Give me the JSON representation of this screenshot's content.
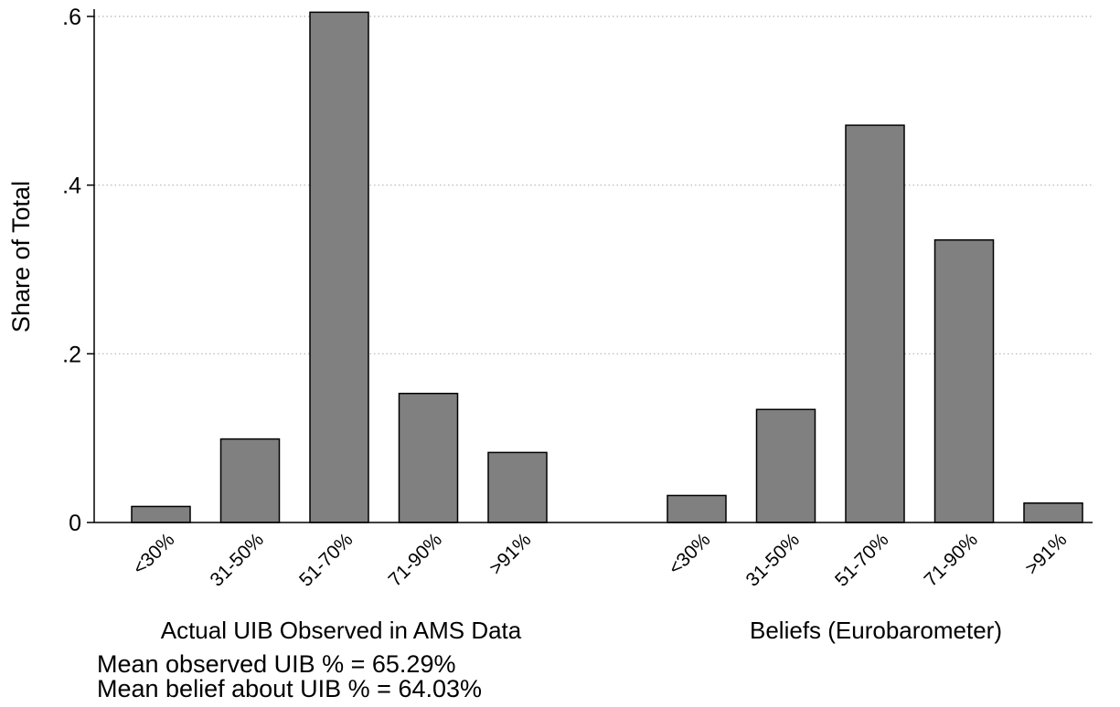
{
  "chart_data": {
    "type": "bar",
    "ylabel": "Share of Total",
    "ylim": [
      0,
      0.6
    ],
    "yticks": [
      0,
      0.2,
      0.4,
      0.6
    ],
    "ytick_labels": [
      "0",
      ".2",
      ".4",
      ".6"
    ],
    "grid": true,
    "bar_color": "#808080",
    "groups": [
      {
        "name": "Actual UIB Observed in AMS Data",
        "categories": [
          "<30%",
          "31-50%",
          "51-70%",
          "71-90%",
          ">91%"
        ],
        "values": [
          0.019,
          0.099,
          0.605,
          0.153,
          0.083
        ]
      },
      {
        "name": "Beliefs (Eurobarometer)",
        "categories": [
          "<30%",
          "31-50%",
          "51-70%",
          "71-90%",
          ">91%"
        ],
        "values": [
          0.032,
          0.134,
          0.471,
          0.335,
          0.023
        ]
      }
    ]
  },
  "notes": [
    "Mean observed UIB % = 65.29%",
    "Mean belief about UIB % = 64.03%"
  ]
}
